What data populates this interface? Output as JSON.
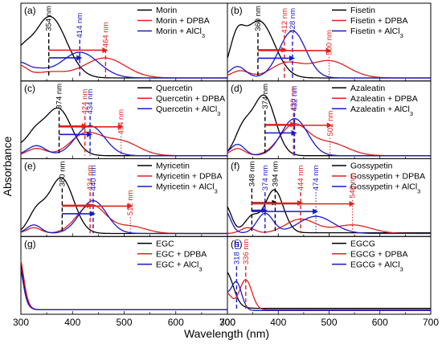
{
  "chart_data": {
    "type": "line",
    "xlabel": "Wavelength (nm)",
    "ylabel": "Absorbance",
    "xlim": [
      300,
      700
    ],
    "x_ticks": [
      "300",
      "400",
      "500",
      "600",
      "700"
    ],
    "colors": {
      "base": "#000000",
      "dpba": "#e02020",
      "alcl3": "#1a1acc"
    },
    "panels": [
      {
        "label": "(a)",
        "legend": [
          {
            "text": "Morin"
          },
          {
            "text": "Morin + DPBA"
          },
          {
            "text": "Morin + AlCl",
            "sub": "3"
          }
        ],
        "annotations": [
          {
            "text": "354 nm",
            "x": 354,
            "color": "base"
          },
          {
            "text": "414 nm",
            "x": 414,
            "color": "alcl3"
          },
          {
            "text": "464 nm",
            "x": 464,
            "color": "dpba"
          }
        ]
      },
      {
        "label": "(b)",
        "legend": [
          {
            "text": "Fisetin"
          },
          {
            "text": "Fisetin + DPBA"
          },
          {
            "text": "Fisetin + AlCl",
            "sub": "3"
          }
        ],
        "annotations": [
          {
            "text": "360 nm",
            "x": 360,
            "color": "base"
          },
          {
            "text": "412 nm",
            "x": 412,
            "color": "dpba"
          },
          {
            "text": "428 nm",
            "x": 428,
            "color": "alcl3"
          },
          {
            "text": "500 nm",
            "x": 500,
            "color": "dpba"
          }
        ]
      },
      {
        "label": "(c)",
        "legend": [
          {
            "text": "Quercetin"
          },
          {
            "text": "Quercetin + DPBA"
          },
          {
            "text": "Quercetin + AlCl",
            "sub": "3"
          }
        ],
        "annotations": [
          {
            "text": "374 nm",
            "x": 374,
            "color": "base"
          },
          {
            "text": "424 nm",
            "x": 424,
            "color": "dpba"
          },
          {
            "text": "434 nm",
            "x": 434,
            "color": "alcl3"
          },
          {
            "text": "494 nm",
            "x": 494,
            "color": "dpba"
          }
        ]
      },
      {
        "label": "(d)",
        "legend": [
          {
            "text": "Azaleatin"
          },
          {
            "text": "Azaleatin + DPBA"
          },
          {
            "text": "Azaleatin + AlCl",
            "sub": "3"
          }
        ],
        "annotations": [
          {
            "text": "374 nm",
            "x": 374,
            "color": "base"
          },
          {
            "text": "430 nm",
            "x": 430,
            "color": "dpba"
          },
          {
            "text": "432 nm",
            "x": 432,
            "color": "alcl3"
          },
          {
            "text": "502 nm",
            "x": 502,
            "color": "dpba"
          }
        ]
      },
      {
        "label": "(e)",
        "legend": [
          {
            "text": "Myricetin"
          },
          {
            "text": "Myricetin + DPBA"
          },
          {
            "text": "Myricetin + AlCl",
            "sub": "3"
          }
        ],
        "annotations": [
          {
            "text": "380 nm",
            "x": 380,
            "color": "base"
          },
          {
            "text": "434 nm",
            "x": 434,
            "color": "dpba"
          },
          {
            "text": "440 nm",
            "x": 440,
            "color": "alcl3"
          },
          {
            "text": "512 nm",
            "x": 512,
            "color": "dpba"
          }
        ]
      },
      {
        "label": "(f)",
        "legend": [
          {
            "text": "Gossypetin"
          },
          {
            "text": "Gossypetin + DPBA"
          },
          {
            "text": "Gossypetin + AlCl",
            "sub": "3"
          }
        ],
        "annotations": [
          {
            "text": "348 nm",
            "x": 348,
            "color": "base"
          },
          {
            "text": "374 nm",
            "x": 374,
            "color": "alcl3"
          },
          {
            "text": "394 nm",
            "x": 394,
            "color": "base"
          },
          {
            "text": "444 nm",
            "x": 444,
            "color": "dpba"
          },
          {
            "text": "474 nm",
            "x": 474,
            "color": "alcl3"
          },
          {
            "text": "546 nm",
            "x": 546,
            "color": "dpba"
          }
        ]
      },
      {
        "label": "(g)",
        "legend": [
          {
            "text": "EGC"
          },
          {
            "text": "EGC + DPBA"
          },
          {
            "text": "EGC + AlCl",
            "sub": "3"
          }
        ],
        "annotations": []
      },
      {
        "label": "(h)",
        "legend": [
          {
            "text": "EGCG"
          },
          {
            "text": "EGCG + DPBA"
          },
          {
            "text": "EGCG + AlCl",
            "sub": "3"
          }
        ],
        "annotations": [
          {
            "text": "318 nm",
            "x": 318,
            "color": "alcl3"
          },
          {
            "text": "336 nm",
            "x": 336,
            "color": "dpba"
          }
        ]
      }
    ]
  }
}
